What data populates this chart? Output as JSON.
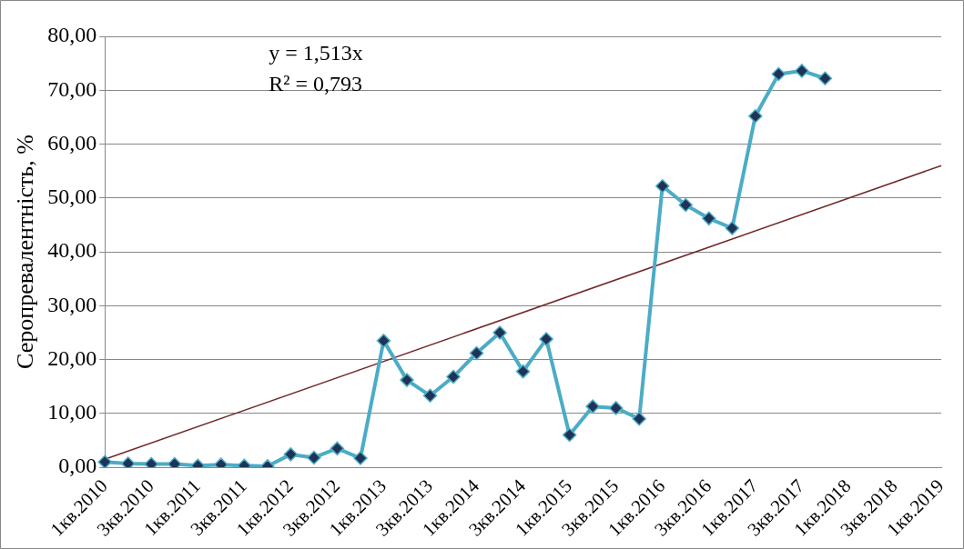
{
  "chart_data": {
    "type": "line",
    "ylabel": "Серопревалентність, %",
    "categories": [
      "1кв.2010",
      null,
      "3кв.2010",
      null,
      "1кв.2011",
      null,
      "3кв.2011",
      null,
      "1кв.2012",
      null,
      "3кв.2012",
      null,
      "1кв.2013",
      null,
      "3кв.2013",
      null,
      "1кв.2014",
      null,
      "3кв.2014",
      null,
      "1кв.2015",
      null,
      "3кв.2015",
      null,
      "1кв.2016",
      null,
      "3кв.2016",
      null,
      "1кв.2017",
      null,
      "3кв.2017",
      null,
      "1кв.2018",
      null,
      "3кв.2018",
      null,
      "1кв.2019"
    ],
    "series": [
      {
        "color": "#4bacc6",
        "marker": "diamond",
        "values": [
          1.0,
          0.7,
          0.6,
          0.6,
          0.3,
          0.5,
          0.3,
          0.2,
          2.4,
          1.8,
          3.5,
          1.7,
          23.5,
          16.2,
          13.3,
          16.8,
          21.2,
          25.0,
          17.8,
          23.8,
          6.0,
          11.3,
          11.0,
          9.0,
          52.2,
          48.7,
          46.2,
          44.4,
          65.2,
          73.0,
          73.6,
          72.2,
          null,
          null,
          null,
          null,
          null
        ]
      },
      {
        "color": "#722828",
        "marker": "none",
        "values": [
          1.5,
          null,
          null,
          null,
          null,
          null,
          null,
          null,
          null,
          null,
          null,
          null,
          null,
          null,
          null,
          null,
          null,
          null,
          null,
          null,
          null,
          null,
          null,
          null,
          null,
          null,
          null,
          null,
          null,
          null,
          null,
          null,
          null,
          null,
          null,
          null,
          56.0
        ]
      }
    ],
    "ylim": [
      0,
      80
    ],
    "yticks": [
      {
        "value": 0,
        "label": "0,00"
      },
      {
        "value": 10,
        "label": "10,00"
      },
      {
        "value": 20,
        "label": "20,00"
      },
      {
        "value": 30,
        "label": "30,00"
      },
      {
        "value": 40,
        "label": "40,00"
      },
      {
        "value": 50,
        "label": "50,00"
      },
      {
        "value": 60,
        "label": "60,00"
      },
      {
        "value": 70,
        "label": "70,00"
      },
      {
        "value": 80,
        "label": "80,00"
      }
    ],
    "grid": "y",
    "legend": false,
    "annotations": [
      "y = 1,513x",
      "R² = 0,793"
    ]
  }
}
